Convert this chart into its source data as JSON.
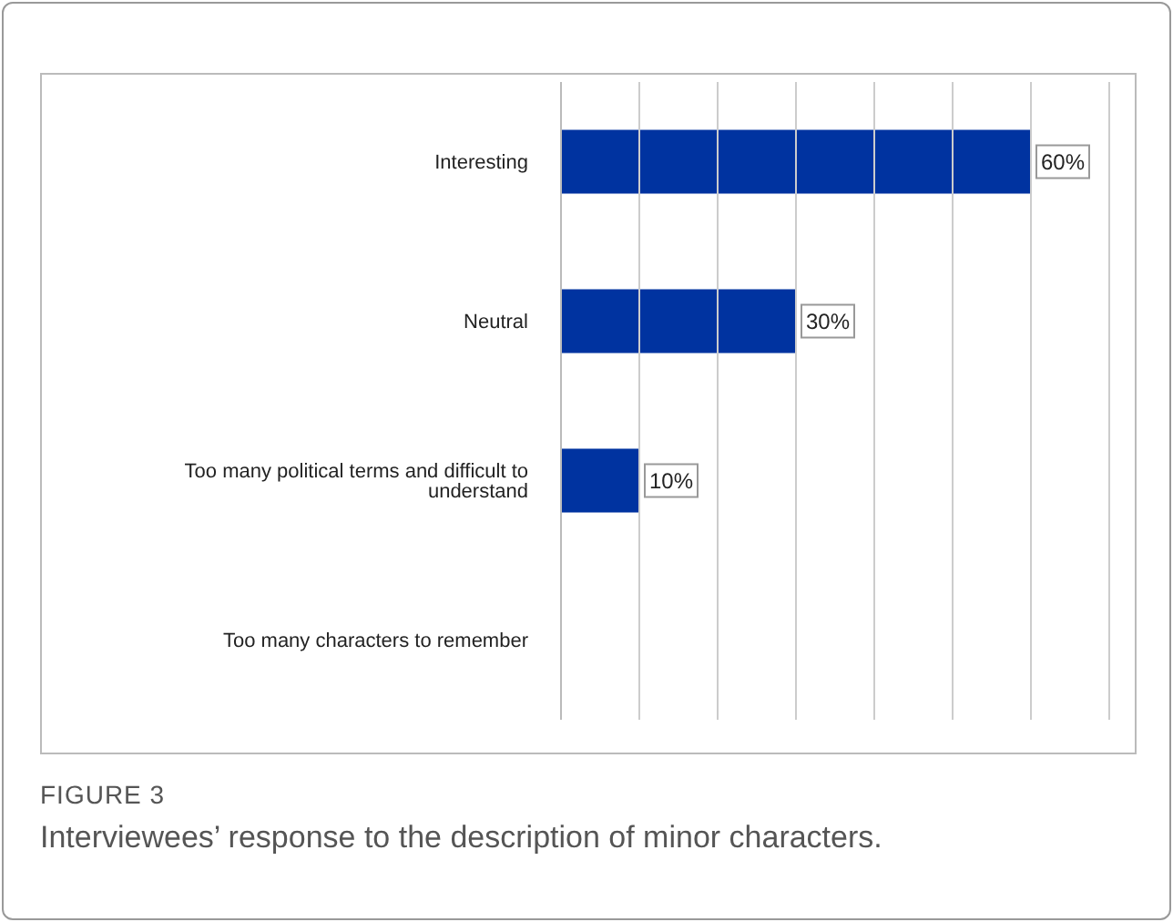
{
  "chart_data": {
    "type": "bar",
    "orientation": "horizontal",
    "categories": [
      "Interesting",
      "Neutral",
      "Too many political terms and difficult to understand",
      "Too many characters to remember"
    ],
    "values": [
      60,
      30,
      10,
      null
    ],
    "value_labels": [
      "60%",
      "30%",
      "10%",
      null
    ],
    "color": "#0033a0",
    "xlim": [
      0,
      70
    ],
    "xticks": [
      {
        "value": 0,
        "label": null
      },
      {
        "value": 10,
        "label": null
      },
      {
        "value": 20,
        "label": null
      },
      {
        "value": 30,
        "label": null
      },
      {
        "value": 40,
        "label": null
      },
      {
        "value": 50,
        "label": null
      },
      {
        "value": 60,
        "label": null
      },
      {
        "value": 70,
        "label": null
      }
    ],
    "grid": "x",
    "tick_labels": "y",
    "annotations": [
      "FIGURE 3",
      "Interviewees’ response to the description of minor characters."
    ]
  }
}
